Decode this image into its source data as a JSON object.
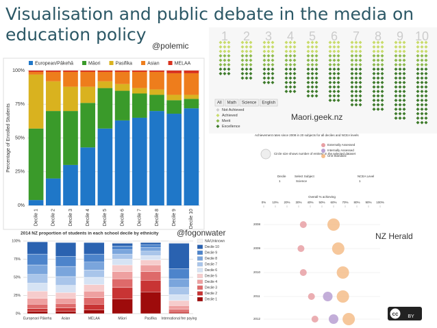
{
  "title": "Visualisation and public debate in the media on education policy",
  "annotations": [
    "@polemic",
    "Maori.geek.nz",
    "@fogonwater",
    "NZ Herald"
  ],
  "license": "BY",
  "geek_panel": {
    "columns": [
      "1",
      "2",
      "3",
      "4",
      "5",
      "6",
      "7",
      "8",
      "9",
      "10"
    ],
    "tabs": [
      "All",
      "Math",
      "Science",
      "English"
    ],
    "legend": [
      "Not Achieved",
      "Achieved",
      "Merit",
      "Excellence"
    ]
  },
  "chart_data": [
    {
      "type": "stacked-bar",
      "y_label": "Percentage of Enrolled Students",
      "categories": [
        "Decile 1",
        "Decile 2",
        "Decile 3",
        "Decile 4",
        "Decile 5",
        "Decile 6",
        "Decile 7",
        "Decile 8",
        "Decile 9",
        "Decile 10"
      ],
      "series": [
        {
          "name": "European/Pākehā",
          "color": "#1f77c8",
          "values": [
            4,
            20,
            30,
            43,
            57,
            63,
            65,
            70,
            68,
            72
          ]
        },
        {
          "name": "Māori",
          "color": "#3a9a2a",
          "values": [
            53,
            50,
            40,
            33,
            30,
            22,
            18,
            12,
            10,
            7
          ]
        },
        {
          "name": "Pasifika",
          "color": "#d9b21f",
          "values": [
            40,
            22,
            18,
            12,
            5,
            5,
            4,
            4,
            4,
            3
          ]
        },
        {
          "name": "Asian",
          "color": "#ee7d1c",
          "values": [
            2,
            7,
            11,
            11,
            7,
            9,
            12,
            13,
            16,
            16
          ]
        },
        {
          "name": "MELAA",
          "color": "#d8321e",
          "values": [
            1,
            1,
            1,
            1,
            1,
            1,
            1,
            1,
            2,
            2
          ]
        }
      ],
      "ylim": [
        0,
        100
      ],
      "yticks": [
        {
          "value": 0,
          "label": "0%"
        },
        {
          "value": 25,
          "label": "25%"
        },
        {
          "value": 50,
          "label": "50%"
        },
        {
          "value": 75,
          "label": "75%"
        },
        {
          "value": 100,
          "label": "100%"
        }
      ],
      "grid": true
    },
    {
      "type": "stacked-bar",
      "title": "2014 NZ proportion of students in each school decile by ethnicity",
      "categories": [
        "European/ Pākeha",
        "Asian",
        "MELAA",
        "Māori",
        "Pasifika",
        "International fee paying"
      ],
      "legend_reversed": true,
      "series": [
        {
          "name": "Decile 1",
          "color": "#9e0b0b",
          "values": [
            3,
            3,
            5,
            20,
            30,
            1
          ]
        },
        {
          "name": "Decile 2",
          "color": "#c83434",
          "values": [
            4,
            5,
            8,
            16,
            16,
            2
          ]
        },
        {
          "name": "Decile 3",
          "color": "#de6a6a",
          "values": [
            6,
            6,
            9,
            12,
            12,
            3
          ]
        },
        {
          "name": "Decile 4",
          "color": "#eea0a0",
          "values": [
            8,
            7,
            9,
            10,
            9,
            5
          ]
        },
        {
          "name": "Decile 5",
          "color": "#f6cccc",
          "values": [
            10,
            8,
            9,
            9,
            7,
            7
          ]
        },
        {
          "name": "Decile 6",
          "color": "#d6e3f4",
          "values": [
            11,
            10,
            10,
            8,
            6,
            8
          ]
        },
        {
          "name": "Decile 7",
          "color": "#a9c5ea",
          "values": [
            12,
            12,
            10,
            7,
            6,
            10
          ]
        },
        {
          "name": "Decile 8",
          "color": "#7aa5dc",
          "values": [
            13,
            14,
            11,
            6,
            5,
            12
          ]
        },
        {
          "name": "Decile 9",
          "color": "#4d84cb",
          "values": [
            15,
            14,
            11,
            5,
            4,
            14
          ]
        },
        {
          "name": "Decile 10",
          "color": "#2a62b0",
          "values": [
            17,
            19,
            16,
            4,
            3,
            35
          ]
        },
        {
          "name": "NA/Unknown",
          "color": "#f2f2f2",
          "values": [
            1,
            2,
            2,
            3,
            2,
            3
          ]
        }
      ],
      "ylim": [
        0,
        100
      ],
      "yticks": [
        {
          "value": 0,
          "label": "0%"
        },
        {
          "value": 25,
          "label": "25%"
        },
        {
          "value": 50,
          "label": "50%"
        },
        {
          "value": 75,
          "label": "75%"
        },
        {
          "value": 100,
          "label": "100%"
        }
      ],
      "grid": true
    },
    {
      "type": "scatter",
      "title": "Achievement rates since 2008 in 20 subjects for all deciles and NCEA levels",
      "note": "Circle size shows number of entries* in the selected dataset",
      "controls": {
        "decile_label": "Decile",
        "decile": "1",
        "subject_label": "Select Subject",
        "subject": "Science",
        "level_label": "NCEA Level",
        "level": "1"
      },
      "x_label": "Overall % achieving",
      "categories": [
        "2008",
        "2009",
        "2010",
        "2011",
        "2012"
      ],
      "series": [
        {
          "name": "Externally Assessed",
          "color": "#e8a0a4",
          "values": [
            34,
            32,
            34,
            41,
            44
          ]
        },
        {
          "name": "Internally Assessed",
          "color": "#b9a0d2",
          "values": [
            null,
            null,
            null,
            55,
            60
          ]
        },
        {
          "name": "Unit Standard",
          "color": "#f5bd8a",
          "values": [
            60,
            64,
            68,
            68,
            73
          ]
        }
      ],
      "xlim": [
        0,
        100
      ],
      "xticks": [
        {
          "value": 0,
          "label": "0%"
        },
        {
          "value": 10,
          "label": "10%"
        },
        {
          "value": 20,
          "label": "20%"
        },
        {
          "value": 30,
          "label": "30%"
        },
        {
          "value": 40,
          "label": "40%"
        },
        {
          "value": 50,
          "label": "50%"
        },
        {
          "value": 60,
          "label": "60%"
        },
        {
          "value": 70,
          "label": "70%"
        },
        {
          "value": 80,
          "label": "80%"
        },
        {
          "value": 90,
          "label": "90%"
        },
        {
          "value": 100,
          "label": "100%"
        }
      ]
    }
  ]
}
